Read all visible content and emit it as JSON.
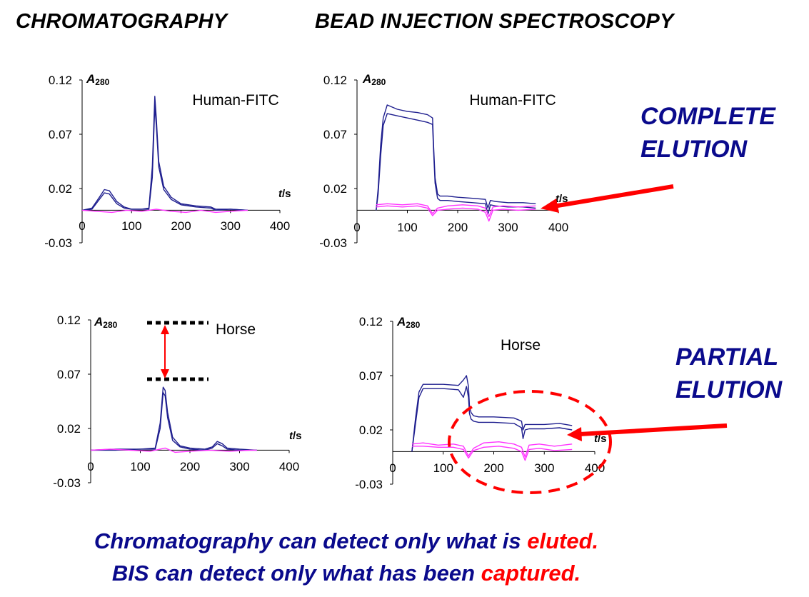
{
  "headings": {
    "left": "CHROMATOGRAPHY",
    "right": "BEAD INJECTION SPECTROSCOPY"
  },
  "side_labels": {
    "complete": [
      "COMPLETE",
      "ELUTION"
    ],
    "partial": [
      "PARTIAL",
      "ELUTION"
    ]
  },
  "caption": {
    "line1_pre": "Chromatography can detect only what is ",
    "line1_em": "eluted.",
    "line2_pre": "BIS can detect only what has been ",
    "line2_em": "captured."
  },
  "colors": {
    "series_dark": "#1f1f8f",
    "series_pink": "#ff33ff",
    "annotation_red": "#ff0000",
    "heading_blue": "#0a0a8c"
  },
  "chart_data": [
    {
      "type": "line",
      "title": "Human-FITC",
      "ylabel_main": "A",
      "ylabel_sub": "280",
      "xlabel_main": "t",
      "xlabel_sub": "/s",
      "xticks": [
        0,
        100,
        200,
        300,
        400
      ],
      "yticks": [
        0.12,
        0.07,
        0.02,
        -0.03
      ],
      "xlim": [
        0,
        400
      ],
      "ylim": [
        -0.03,
        0.12
      ],
      "series": [
        {
          "color": "dark",
          "x": [
            0,
            20,
            35,
            45,
            55,
            70,
            85,
            100,
            120,
            135,
            142,
            147,
            150,
            155,
            165,
            180,
            200,
            230,
            260,
            270,
            300,
            335
          ],
          "y": [
            0,
            0.002,
            0.012,
            0.019,
            0.018,
            0.008,
            0.003,
            0.001,
            0.001,
            0.002,
            0.04,
            0.105,
            0.085,
            0.045,
            0.022,
            0.012,
            0.006,
            0.004,
            0.003,
            0.001,
            0.001,
            0
          ]
        },
        {
          "color": "dark",
          "x": [
            0,
            20,
            35,
            45,
            55,
            70,
            85,
            100,
            120,
            135,
            142,
            147,
            150,
            155,
            165,
            180,
            200,
            230,
            260,
            270,
            300,
            335
          ],
          "y": [
            0,
            0.001,
            0.01,
            0.016,
            0.015,
            0.006,
            0.002,
            0.001,
            0.001,
            0.001,
            0.03,
            0.096,
            0.078,
            0.04,
            0.019,
            0.01,
            0.005,
            0.003,
            0.002,
            0,
            0.001,
            0
          ]
        },
        {
          "color": "pink",
          "x": [
            0,
            30,
            60,
            90,
            120,
            150,
            180,
            210,
            240,
            270,
            300,
            335
          ],
          "y": [
            0,
            -0.001,
            -0.002,
            0,
            -0.001,
            0.001,
            -0.001,
            -0.002,
            0,
            -0.002,
            -0.001,
            0
          ]
        }
      ]
    },
    {
      "type": "line",
      "title": "Human-FITC",
      "ylabel_main": "A",
      "ylabel_sub": "280",
      "xlabel_main": "t",
      "xlabel_sub": "/s",
      "xticks": [
        0,
        100,
        200,
        300,
        400
      ],
      "yticks": [
        0.12,
        0.07,
        0.02,
        -0.03
      ],
      "xlim": [
        0,
        400
      ],
      "ylim": [
        -0.03,
        0.12
      ],
      "series": [
        {
          "color": "dark",
          "x": [
            38,
            42,
            47,
            52,
            60,
            80,
            100,
            120,
            140,
            150,
            152,
            155,
            160,
            165,
            180,
            200,
            230,
            255,
            260,
            265,
            275,
            300,
            330,
            355
          ],
          "y": [
            0,
            0.02,
            0.06,
            0.085,
            0.097,
            0.093,
            0.091,
            0.09,
            0.088,
            0.085,
            0.06,
            0.03,
            0.015,
            0.013,
            0.013,
            0.012,
            0.011,
            0.01,
            0.002,
            0.009,
            0.008,
            0.007,
            0.007,
            0.006
          ]
        },
        {
          "color": "dark",
          "x": [
            38,
            42,
            47,
            52,
            60,
            80,
            100,
            120,
            140,
            150,
            152,
            155,
            160,
            165,
            180,
            200,
            230,
            255,
            260,
            265,
            275,
            300,
            330,
            355
          ],
          "y": [
            0,
            0.015,
            0.05,
            0.078,
            0.089,
            0.087,
            0.085,
            0.083,
            0.081,
            0.079,
            0.055,
            0.025,
            0.011,
            0.009,
            0.009,
            0.008,
            0.007,
            0.006,
            -0.004,
            0.005,
            0.004,
            0.003,
            0.003,
            0.002
          ]
        },
        {
          "color": "pink",
          "x": [
            38,
            60,
            90,
            120,
            140,
            150,
            160,
            180,
            210,
            240,
            255,
            262,
            270,
            290,
            320,
            355
          ],
          "y": [
            0.005,
            0.006,
            0.005,
            0.006,
            0.004,
            -0.003,
            0.002,
            0.004,
            0.005,
            0.004,
            0.002,
            -0.006,
            0.003,
            0.004,
            0.003,
            0.004
          ]
        },
        {
          "color": "pink",
          "x": [
            38,
            60,
            90,
            120,
            140,
            150,
            160,
            180,
            210,
            240,
            255,
            262,
            270,
            290,
            320,
            355
          ],
          "y": [
            0.003,
            0.004,
            0.003,
            0.004,
            0.002,
            -0.005,
            0,
            0.001,
            0.002,
            0.001,
            -0.002,
            -0.01,
            0,
            0.001,
            0,
            0.001
          ]
        }
      ]
    },
    {
      "type": "line",
      "title": "Horse",
      "ylabel_main": "A",
      "ylabel_sub": "280",
      "xlabel_main": "t",
      "xlabel_sub": "/s",
      "xticks": [
        0,
        100,
        200,
        300,
        400
      ],
      "yticks": [
        0.12,
        0.07,
        0.02,
        -0.03
      ],
      "xlim": [
        0,
        400
      ],
      "ylim": [
        -0.03,
        0.12
      ],
      "series": [
        {
          "color": "dark",
          "x": [
            0,
            50,
            100,
            130,
            140,
            146,
            150,
            155,
            165,
            180,
            200,
            230,
            245,
            255,
            265,
            275,
            300,
            335
          ],
          "y": [
            0,
            0.001,
            0.001,
            0.002,
            0.025,
            0.058,
            0.055,
            0.035,
            0.012,
            0.004,
            0.002,
            0.001,
            0.003,
            0.008,
            0.006,
            0.002,
            0.001,
            0
          ]
        },
        {
          "color": "dark",
          "x": [
            0,
            50,
            100,
            130,
            140,
            146,
            150,
            155,
            165,
            180,
            200,
            230,
            245,
            255,
            265,
            275,
            300,
            335
          ],
          "y": [
            0,
            0,
            0.001,
            0.001,
            0.02,
            0.053,
            0.05,
            0.03,
            0.009,
            0.003,
            0.001,
            0,
            0.002,
            0.006,
            0.004,
            0.001,
            0,
            0
          ]
        },
        {
          "color": "pink",
          "x": [
            0,
            40,
            80,
            120,
            150,
            170,
            200,
            240,
            280,
            320,
            335
          ],
          "y": [
            0,
            0.001,
            0,
            -0.001,
            0.002,
            -0.002,
            -0.001,
            0,
            -0.001,
            0,
            0
          ]
        }
      ]
    },
    {
      "type": "line",
      "title": "Horse",
      "ylabel_main": "A",
      "ylabel_sub": "280",
      "xlabel_main": "t",
      "xlabel_sub": "/s",
      "xticks": [
        0,
        100,
        200,
        300,
        400
      ],
      "yticks": [
        0.12,
        0.07,
        0.02,
        -0.03
      ],
      "xlim": [
        0,
        400
      ],
      "ylim": [
        -0.03,
        0.12
      ],
      "series": [
        {
          "color": "dark",
          "x": [
            38,
            45,
            52,
            60,
            80,
            100,
            130,
            140,
            146,
            150,
            152,
            155,
            160,
            170,
            200,
            240,
            255,
            258,
            262,
            270,
            300,
            330,
            355
          ],
          "y": [
            0,
            0.03,
            0.055,
            0.062,
            0.062,
            0.062,
            0.061,
            0.066,
            0.07,
            0.06,
            0.042,
            0.036,
            0.033,
            0.032,
            0.032,
            0.031,
            0.028,
            0.02,
            0.025,
            0.025,
            0.025,
            0.026,
            0.024
          ]
        },
        {
          "color": "dark",
          "x": [
            38,
            45,
            52,
            60,
            80,
            100,
            130,
            140,
            146,
            150,
            152,
            155,
            160,
            170,
            200,
            240,
            255,
            258,
            262,
            270,
            300,
            330,
            355
          ],
          "y": [
            0,
            0.025,
            0.05,
            0.058,
            0.058,
            0.058,
            0.057,
            0.05,
            0.06,
            0.05,
            0.035,
            0.03,
            0.028,
            0.027,
            0.027,
            0.026,
            0.022,
            0.012,
            0.02,
            0.021,
            0.021,
            0.022,
            0.02
          ]
        },
        {
          "color": "pink",
          "x": [
            38,
            60,
            90,
            120,
            140,
            150,
            160,
            180,
            210,
            240,
            255,
            262,
            270,
            290,
            320,
            355
          ],
          "y": [
            0.007,
            0.008,
            0.006,
            0.007,
            0.005,
            -0.004,
            0.003,
            0.008,
            0.009,
            0.007,
            0.004,
            -0.005,
            0.006,
            0.007,
            0.005,
            0.007
          ]
        },
        {
          "color": "pink",
          "x": [
            38,
            60,
            90,
            120,
            140,
            150,
            160,
            180,
            210,
            240,
            255,
            262,
            270,
            290,
            320,
            355
          ],
          "y": [
            0.005,
            0.005,
            0.004,
            0.004,
            0.002,
            -0.006,
            0.001,
            0.004,
            0.005,
            0.003,
            0,
            -0.008,
            0.002,
            0.003,
            0.001,
            0.002
          ]
        }
      ]
    }
  ]
}
